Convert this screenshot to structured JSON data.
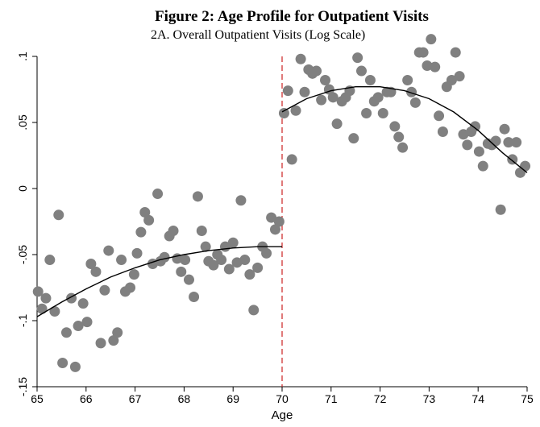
{
  "title": "Figure 2: Age Profile for Outpatient Visits",
  "subtitle": "2A. Overall Outpatient Visits (Log Scale)",
  "chart_data": {
    "type": "scatter",
    "xlabel": "Age",
    "ylabel": "",
    "xlim": [
      65,
      75
    ],
    "ylim": [
      -0.15,
      0.1
    ],
    "xticks": [
      65,
      66,
      67,
      68,
      69,
      70,
      71,
      72,
      73,
      74,
      75
    ],
    "xtick_labels": [
      "65",
      "66",
      "67",
      "68",
      "69",
      "70",
      "71",
      "72",
      "73",
      "74",
      "75"
    ],
    "yticks": [
      -0.15,
      -0.1,
      -0.05,
      0,
      0.05,
      0.1
    ],
    "ytick_labels": [
      "-.15",
      "-.1",
      "-.05",
      "0",
      ".05",
      ".1"
    ],
    "cutoff_x": 70,
    "marker_color": "#808080",
    "fit_color": "#000000",
    "cutoff_color": "#cc2222",
    "points": [
      {
        "x": 65.02,
        "y": -0.078
      },
      {
        "x": 65.1,
        "y": -0.091
      },
      {
        "x": 65.18,
        "y": -0.083
      },
      {
        "x": 65.26,
        "y": -0.054
      },
      {
        "x": 65.36,
        "y": -0.093
      },
      {
        "x": 65.44,
        "y": -0.02
      },
      {
        "x": 65.52,
        "y": -0.132
      },
      {
        "x": 65.6,
        "y": -0.109
      },
      {
        "x": 65.7,
        "y": -0.083
      },
      {
        "x": 65.78,
        "y": -0.135
      },
      {
        "x": 65.84,
        "y": -0.104
      },
      {
        "x": 65.94,
        "y": -0.087
      },
      {
        "x": 66.02,
        "y": -0.101
      },
      {
        "x": 66.1,
        "y": -0.057
      },
      {
        "x": 66.2,
        "y": -0.063
      },
      {
        "x": 66.3,
        "y": -0.117
      },
      {
        "x": 66.38,
        "y": -0.077
      },
      {
        "x": 66.46,
        "y": -0.047
      },
      {
        "x": 66.56,
        "y": -0.115
      },
      {
        "x": 66.64,
        "y": -0.109
      },
      {
        "x": 66.72,
        "y": -0.054
      },
      {
        "x": 66.8,
        "y": -0.078
      },
      {
        "x": 66.9,
        "y": -0.075
      },
      {
        "x": 66.98,
        "y": -0.065
      },
      {
        "x": 67.04,
        "y": -0.049
      },
      {
        "x": 67.12,
        "y": -0.033
      },
      {
        "x": 67.2,
        "y": -0.018
      },
      {
        "x": 67.28,
        "y": -0.024
      },
      {
        "x": 67.36,
        "y": -0.057
      },
      {
        "x": 67.46,
        "y": -0.004
      },
      {
        "x": 67.52,
        "y": -0.055
      },
      {
        "x": 67.6,
        "y": -0.052
      },
      {
        "x": 67.7,
        "y": -0.036
      },
      {
        "x": 67.78,
        "y": -0.032
      },
      {
        "x": 67.86,
        "y": -0.053
      },
      {
        "x": 67.94,
        "y": -0.063
      },
      {
        "x": 68.02,
        "y": -0.054
      },
      {
        "x": 68.1,
        "y": -0.069
      },
      {
        "x": 68.2,
        "y": -0.082
      },
      {
        "x": 68.28,
        "y": -0.006
      },
      {
        "x": 68.36,
        "y": -0.032
      },
      {
        "x": 68.44,
        "y": -0.044
      },
      {
        "x": 68.5,
        "y": -0.055
      },
      {
        "x": 68.6,
        "y": -0.058
      },
      {
        "x": 68.68,
        "y": -0.05
      },
      {
        "x": 68.76,
        "y": -0.054
      },
      {
        "x": 68.84,
        "y": -0.044
      },
      {
        "x": 68.92,
        "y": -0.061
      },
      {
        "x": 69.0,
        "y": -0.041
      },
      {
        "x": 69.08,
        "y": -0.056
      },
      {
        "x": 69.16,
        "y": -0.009
      },
      {
        "x": 69.24,
        "y": -0.054
      },
      {
        "x": 69.34,
        "y": -0.065
      },
      {
        "x": 69.42,
        "y": -0.092
      },
      {
        "x": 69.5,
        "y": -0.06
      },
      {
        "x": 69.6,
        "y": -0.044
      },
      {
        "x": 69.68,
        "y": -0.049
      },
      {
        "x": 69.78,
        "y": -0.022
      },
      {
        "x": 69.86,
        "y": -0.031
      },
      {
        "x": 69.94,
        "y": -0.025
      },
      {
        "x": 70.04,
        "y": 0.057
      },
      {
        "x": 70.12,
        "y": 0.074
      },
      {
        "x": 70.2,
        "y": 0.022
      },
      {
        "x": 70.28,
        "y": 0.059
      },
      {
        "x": 70.38,
        "y": 0.098
      },
      {
        "x": 70.46,
        "y": 0.073
      },
      {
        "x": 70.54,
        "y": 0.09
      },
      {
        "x": 70.62,
        "y": 0.087
      },
      {
        "x": 70.7,
        "y": 0.089
      },
      {
        "x": 70.8,
        "y": 0.067
      },
      {
        "x": 70.88,
        "y": 0.082
      },
      {
        "x": 70.96,
        "y": 0.075
      },
      {
        "x": 71.04,
        "y": 0.069
      },
      {
        "x": 71.12,
        "y": 0.049
      },
      {
        "x": 71.22,
        "y": 0.066
      },
      {
        "x": 71.3,
        "y": 0.069
      },
      {
        "x": 71.38,
        "y": 0.074
      },
      {
        "x": 71.46,
        "y": 0.038
      },
      {
        "x": 71.54,
        "y": 0.099
      },
      {
        "x": 71.62,
        "y": 0.089
      },
      {
        "x": 71.72,
        "y": 0.057
      },
      {
        "x": 71.8,
        "y": 0.082
      },
      {
        "x": 71.88,
        "y": 0.066
      },
      {
        "x": 71.96,
        "y": 0.069
      },
      {
        "x": 72.06,
        "y": 0.057
      },
      {
        "x": 72.14,
        "y": 0.073
      },
      {
        "x": 72.22,
        "y": 0.073
      },
      {
        "x": 72.3,
        "y": 0.047
      },
      {
        "x": 72.38,
        "y": 0.039
      },
      {
        "x": 72.46,
        "y": 0.031
      },
      {
        "x": 72.56,
        "y": 0.082
      },
      {
        "x": 72.64,
        "y": 0.073
      },
      {
        "x": 72.72,
        "y": 0.065
      },
      {
        "x": 72.8,
        "y": 0.103
      },
      {
        "x": 72.88,
        "y": 0.103
      },
      {
        "x": 72.96,
        "y": 0.093
      },
      {
        "x": 73.04,
        "y": 0.113
      },
      {
        "x": 73.12,
        "y": 0.092
      },
      {
        "x": 73.2,
        "y": 0.055
      },
      {
        "x": 73.28,
        "y": 0.043
      },
      {
        "x": 73.36,
        "y": 0.077
      },
      {
        "x": 73.46,
        "y": 0.082
      },
      {
        "x": 73.54,
        "y": 0.103
      },
      {
        "x": 73.62,
        "y": 0.085
      },
      {
        "x": 73.7,
        "y": 0.041
      },
      {
        "x": 73.78,
        "y": 0.033
      },
      {
        "x": 73.86,
        "y": 0.043
      },
      {
        "x": 73.94,
        "y": 0.047
      },
      {
        "x": 74.02,
        "y": 0.028
      },
      {
        "x": 74.1,
        "y": 0.017
      },
      {
        "x": 74.2,
        "y": 0.034
      },
      {
        "x": 74.28,
        "y": 0.033
      },
      {
        "x": 74.36,
        "y": 0.036
      },
      {
        "x": 74.46,
        "y": -0.016
      },
      {
        "x": 74.54,
        "y": 0.045
      },
      {
        "x": 74.62,
        "y": 0.035
      },
      {
        "x": 74.7,
        "y": 0.022
      },
      {
        "x": 74.78,
        "y": 0.035
      },
      {
        "x": 74.86,
        "y": 0.012
      },
      {
        "x": 74.96,
        "y": 0.017
      }
    ],
    "fit_left": [
      {
        "x": 65.0,
        "y": -0.097
      },
      {
        "x": 65.5,
        "y": -0.086
      },
      {
        "x": 66.0,
        "y": -0.076
      },
      {
        "x": 66.5,
        "y": -0.067
      },
      {
        "x": 67.0,
        "y": -0.06
      },
      {
        "x": 67.5,
        "y": -0.054
      },
      {
        "x": 68.0,
        "y": -0.05
      },
      {
        "x": 68.5,
        "y": -0.047
      },
      {
        "x": 69.0,
        "y": -0.045
      },
      {
        "x": 69.5,
        "y": -0.044
      },
      {
        "x": 70.0,
        "y": -0.044
      }
    ],
    "fit_right": [
      {
        "x": 70.0,
        "y": 0.058
      },
      {
        "x": 70.5,
        "y": 0.068
      },
      {
        "x": 71.0,
        "y": 0.074
      },
      {
        "x": 71.5,
        "y": 0.077
      },
      {
        "x": 72.0,
        "y": 0.077
      },
      {
        "x": 72.5,
        "y": 0.074
      },
      {
        "x": 73.0,
        "y": 0.068
      },
      {
        "x": 73.5,
        "y": 0.058
      },
      {
        "x": 74.0,
        "y": 0.044
      },
      {
        "x": 74.5,
        "y": 0.027
      },
      {
        "x": 75.0,
        "y": 0.012
      }
    ]
  }
}
